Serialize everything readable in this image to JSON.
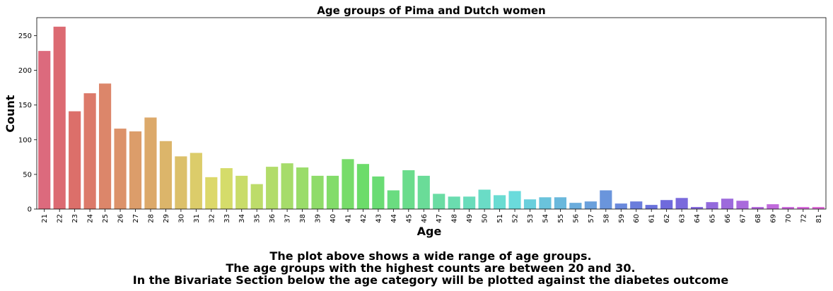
{
  "chart_data": {
    "type": "bar",
    "title": "Age groups of Pima and Dutch women",
    "xlabel": "Age",
    "ylabel": "Count",
    "ylim": [
      0,
      276
    ],
    "yticks": [
      0,
      50,
      100,
      150,
      200,
      250
    ],
    "grid": false,
    "legend": "none",
    "categories": [
      "21",
      "22",
      "23",
      "24",
      "25",
      "26",
      "27",
      "28",
      "29",
      "30",
      "31",
      "32",
      "33",
      "34",
      "35",
      "36",
      "37",
      "38",
      "39",
      "40",
      "41",
      "42",
      "43",
      "44",
      "45",
      "46",
      "47",
      "48",
      "49",
      "50",
      "51",
      "52",
      "53",
      "54",
      "55",
      "56",
      "57",
      "58",
      "59",
      "60",
      "61",
      "62",
      "63",
      "64",
      "65",
      "66",
      "67",
      "68",
      "69",
      "70",
      "72",
      "81"
    ],
    "values": [
      228,
      263,
      141,
      167,
      181,
      116,
      112,
      132,
      98,
      76,
      81,
      46,
      59,
      48,
      36,
      61,
      66,
      60,
      48,
      48,
      72,
      65,
      47,
      27,
      56,
      48,
      22,
      18,
      18,
      28,
      20,
      26,
      14,
      17,
      17,
      9,
      11,
      27,
      8,
      11,
      6,
      13,
      16,
      3,
      10,
      15,
      12,
      3,
      7,
      3,
      3,
      3
    ]
  },
  "caption": {
    "lines": [
      "The plot above shows a wide range of age groups.",
      "The age groups with the highest counts are between 20 and 30.",
      "In the Bivariate Section below the age category will be plotted against the diabetes outcome"
    ]
  }
}
